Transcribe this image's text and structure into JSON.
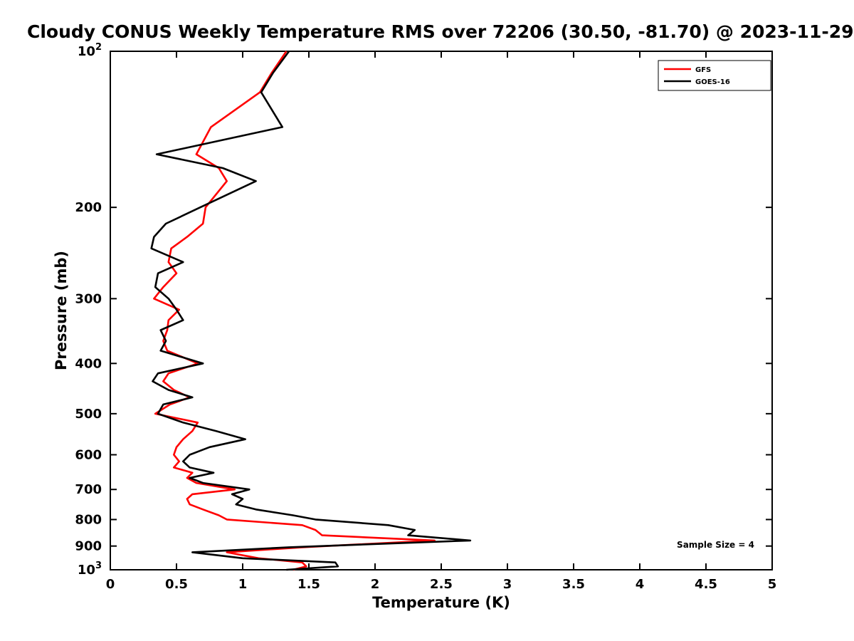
{
  "chart_data": {
    "type": "line",
    "title": "Cloudy CONUS Weekly Temperature RMS over 72206 (30.50, -81.70) @ 2023-11-29",
    "xlabel": "Temperature (K)",
    "ylabel": "Pressure (mb)",
    "annotation": "Sample Size = 4",
    "xlim": [
      0,
      5
    ],
    "ylim": [
      100,
      1000
    ],
    "y_scale": "log",
    "y_inverted": true,
    "grid": false,
    "legend_position": "northeast",
    "x_ticks": [
      {
        "v": 0,
        "label": "0"
      },
      {
        "v": 0.5,
        "label": "0.5"
      },
      {
        "v": 1,
        "label": "1"
      },
      {
        "v": 1.5,
        "label": "1.5"
      },
      {
        "v": 2,
        "label": "2"
      },
      {
        "v": 2.5,
        "label": "2.5"
      },
      {
        "v": 3,
        "label": "3"
      },
      {
        "v": 3.5,
        "label": "3.5"
      },
      {
        "v": 4,
        "label": "4"
      },
      {
        "v": 4.5,
        "label": "4.5"
      },
      {
        "v": 5,
        "label": "5"
      }
    ],
    "y_ticks": [
      {
        "v": 100,
        "label": "10^2"
      },
      {
        "v": 200,
        "label": "200"
      },
      {
        "v": 300,
        "label": "300"
      },
      {
        "v": 400,
        "label": "400"
      },
      {
        "v": 500,
        "label": "500"
      },
      {
        "v": 600,
        "label": "600"
      },
      {
        "v": 700,
        "label": "700"
      },
      {
        "v": 800,
        "label": "800"
      },
      {
        "v": 900,
        "label": "900"
      },
      {
        "v": 1000,
        "label": "10^3"
      }
    ],
    "pressure_levels": [
      100,
      110,
      120,
      140,
      158,
      168,
      178,
      200,
      215,
      228,
      240,
      255,
      268,
      285,
      300,
      315,
      330,
      345,
      362,
      378,
      400,
      418,
      433,
      450,
      465,
      480,
      500,
      520,
      540,
      560,
      580,
      600,
      618,
      635,
      650,
      665,
      680,
      700,
      715,
      730,
      748,
      765,
      785,
      800,
      820,
      838,
      858,
      878,
      905,
      925,
      950,
      968,
      985,
      1000
    ],
    "series": [
      {
        "name": "GFS",
        "color": "#ff0000",
        "values": [
          1.33,
          1.22,
          1.13,
          0.76,
          0.65,
          0.82,
          0.88,
          0.72,
          0.7,
          0.58,
          0.46,
          0.44,
          0.5,
          0.4,
          0.33,
          0.52,
          0.44,
          0.43,
          0.4,
          0.43,
          0.66,
          0.44,
          0.4,
          0.48,
          0.6,
          0.45,
          0.34,
          0.66,
          0.62,
          0.55,
          0.5,
          0.48,
          0.52,
          0.48,
          0.62,
          0.58,
          0.65,
          0.94,
          0.62,
          0.58,
          0.6,
          0.7,
          0.82,
          0.88,
          1.45,
          1.55,
          1.6,
          2.45,
          1.45,
          0.88,
          1.12,
          1.45,
          1.48,
          1.38
        ]
      },
      {
        "name": "GOES-16",
        "color": "#000000",
        "values": [
          1.35,
          1.23,
          1.14,
          1.3,
          0.35,
          0.85,
          1.1,
          0.68,
          0.42,
          0.33,
          0.31,
          0.55,
          0.36,
          0.34,
          0.44,
          0.5,
          0.55,
          0.38,
          0.42,
          0.38,
          0.7,
          0.36,
          0.32,
          0.44,
          0.62,
          0.4,
          0.36,
          0.55,
          0.8,
          1.02,
          0.75,
          0.6,
          0.55,
          0.6,
          0.78,
          0.6,
          0.7,
          1.05,
          0.92,
          1.0,
          0.95,
          1.1,
          1.38,
          1.55,
          2.1,
          2.3,
          2.25,
          2.72,
          1.35,
          0.62,
          1.0,
          1.7,
          1.72,
          1.33
        ]
      }
    ],
    "styles": {
      "axis_color": "#000000",
      "line_width": 2.6,
      "frame_width": 2,
      "tick_len": 9,
      "tick_font_size": 18,
      "legend_font_size": 10
    }
  }
}
